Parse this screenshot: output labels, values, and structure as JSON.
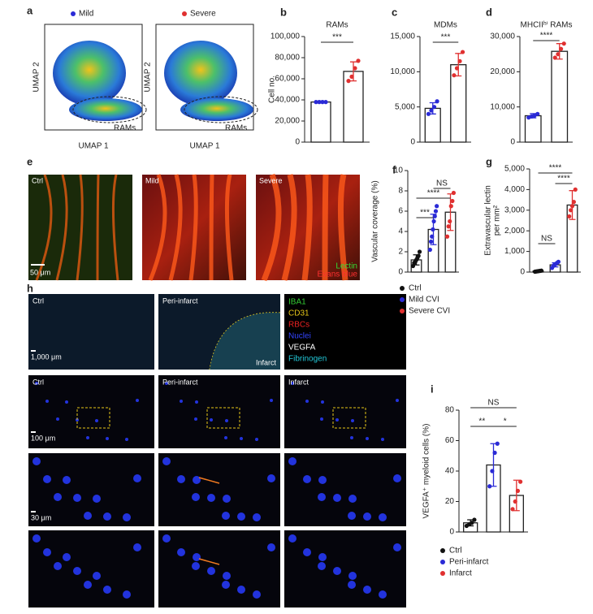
{
  "panel_letters": [
    "a",
    "b",
    "c",
    "d",
    "e",
    "f",
    "g",
    "h",
    "i"
  ],
  "umap": {
    "legend": [
      "Mild",
      "Severe"
    ],
    "legend_colors": [
      "#2a2ad6",
      "#e03030"
    ],
    "xlabel": "UMAP 1",
    "ylabel": "UMAP 2",
    "annotation": "RAMs"
  },
  "vessel_images": {
    "labels": [
      "Ctrl",
      "Mild",
      "Severe"
    ],
    "scale_bar": "50 μm",
    "stains": [
      {
        "name": "Lectin",
        "color": "#33dd33"
      },
      {
        "name": "Evans blue",
        "color": "#ff3030"
      }
    ]
  },
  "histology": {
    "columns": [
      "Ctrl",
      "Peri-infarct",
      "Infarct"
    ],
    "annotation": "Infarct",
    "scale_bars": [
      "1,000 μm",
      "100 μm",
      "30 μm"
    ],
    "channels": [
      {
        "name": "IBA1",
        "color": "#33cc33"
      },
      {
        "name": "CD31",
        "color": "#e6c619"
      },
      {
        "name": "RBCs",
        "color": "#ee2222"
      },
      {
        "name": "Nuclei",
        "color": "#3344ff"
      },
      {
        "name": "VEGFA",
        "color": "#ffffff"
      },
      {
        "name": "Fibrinogen",
        "color": "#22c8d8"
      }
    ]
  },
  "chart_data": [
    {
      "type": "bar",
      "title": "RAMs",
      "ylabel": [
        "Cell no."
      ],
      "categories": [
        null,
        null
      ],
      "values": [
        38000,
        67000
      ],
      "errors": [
        1000,
        9000
      ],
      "points": [
        [
          38000,
          38000,
          38000,
          38000
        ],
        [
          58000,
          62000,
          70000,
          77000
        ]
      ],
      "point_colors": [
        "#2a2ad6",
        "#e03030"
      ],
      "ylim": [
        0,
        100000
      ],
      "yticks": [
        0,
        {
          "value": 20000,
          "label": "20,000"
        },
        {
          "value": 40000,
          "label": "40,000"
        },
        {
          "value": 60000,
          "label": "60,000"
        },
        {
          "value": 80000,
          "label": "80,000"
        },
        {
          "value": 100000,
          "label": "100,000"
        }
      ],
      "significance": [
        "***"
      ]
    },
    {
      "type": "bar",
      "title": "MDMs",
      "ylabel": [],
      "categories": [
        null,
        null
      ],
      "values": [
        4800,
        11000
      ],
      "errors": [
        800,
        1600
      ],
      "points": [
        [
          4000,
          4500,
          5000,
          5800
        ],
        [
          9500,
          10500,
          11500,
          12800
        ]
      ],
      "point_colors": [
        "#2a2ad6",
        "#e03030"
      ],
      "ylim": [
        0,
        15000
      ],
      "yticks": [
        0,
        {
          "value": 5000,
          "label": "5,000"
        },
        {
          "value": 10000,
          "label": "10,000"
        },
        {
          "value": 15000,
          "label": "15,000"
        }
      ],
      "significance": [
        "***"
      ]
    },
    {
      "type": "bar",
      "title": "MHCIIʰⁱ RAMs",
      "ylabel": [],
      "categories": [
        null,
        null
      ],
      "values": [
        7500,
        25800
      ],
      "errors": [
        600,
        2200
      ],
      "points": [
        [
          7000,
          7300,
          7600,
          8000
        ],
        [
          24000,
          25000,
          26500,
          28000
        ]
      ],
      "point_colors": [
        "#2a2ad6",
        "#e03030"
      ],
      "ylim": [
        0,
        30000
      ],
      "yticks": [
        0,
        {
          "value": 10000,
          "label": "10,000"
        },
        {
          "value": 20000,
          "label": "20,000"
        },
        {
          "value": 30000,
          "label": "30,000"
        }
      ],
      "significance": [
        "****"
      ]
    },
    {
      "type": "bar",
      "ylabel": [
        "Vascular coverage (%)"
      ],
      "categories": [
        null,
        null,
        null
      ],
      "values": [
        1.2,
        4.2,
        5.9
      ],
      "errors": [
        0.5,
        1.5,
        1.8
      ],
      "points": [
        [
          0.6,
          0.9,
          1.0,
          1.2,
          1.4,
          1.6,
          2.0
        ],
        [
          2.2,
          3.0,
          3.5,
          4.2,
          5.0,
          5.5,
          6.0,
          6.5
        ],
        [
          3.5,
          4.5,
          5.0,
          6.5,
          7.0,
          7.8
        ]
      ],
      "point_colors": [
        "#111111",
        "#2a2ad6",
        "#e03030"
      ],
      "ylim": [
        0,
        10
      ],
      "yticks": [
        0,
        2,
        4,
        6,
        8,
        10
      ],
      "significance": [
        "****",
        "NS",
        "***"
      ],
      "legend": [
        "Ctrl",
        "Mild CVI",
        "Severe CVI"
      ]
    },
    {
      "type": "bar",
      "ylabel": [
        "Extravascular lectin",
        "per mm²"
      ],
      "categories": [
        null,
        null,
        null
      ],
      "values": [
        50,
        350,
        3250
      ],
      "errors": [
        20,
        100,
        700
      ],
      "points": [
        [
          20,
          30,
          40,
          50,
          60,
          70
        ],
        [
          200,
          300,
          350,
          400,
          450,
          500
        ],
        [
          2700,
          3000,
          3200,
          3400,
          4000
        ]
      ],
      "point_colors": [
        "#111111",
        "#2a2ad6",
        "#e03030"
      ],
      "ylim": [
        0,
        5000
      ],
      "yticks": [
        0,
        {
          "value": 1000,
          "label": "1,000"
        },
        {
          "value": 2000,
          "label": "2,000"
        },
        {
          "value": 3000,
          "label": "3,000"
        },
        {
          "value": 4000,
          "label": "4,000"
        },
        {
          "value": 5000,
          "label": "5,000"
        }
      ],
      "significance": [
        "NS",
        "****",
        "****"
      ]
    },
    {
      "type": "bar",
      "ylabel": [
        "VEGFA⁺ myeloid cells (%)"
      ],
      "categories": [
        null,
        null,
        null
      ],
      "values": [
        6,
        44,
        24
      ],
      "errors": [
        2,
        14,
        10
      ],
      "points": [
        [
          4,
          5,
          6,
          8
        ],
        [
          30,
          40,
          52,
          58
        ],
        [
          15,
          20,
          27,
          33
        ]
      ],
      "point_colors": [
        "#111111",
        "#2a2ad6",
        "#e03030"
      ],
      "ylim": [
        0,
        80
      ],
      "yticks": [
        0,
        20,
        40,
        60,
        80
      ],
      "significance": [
        "NS",
        "**",
        "*"
      ],
      "legend": [
        "Ctrl",
        "Peri-infarct",
        "Infarct"
      ]
    }
  ]
}
